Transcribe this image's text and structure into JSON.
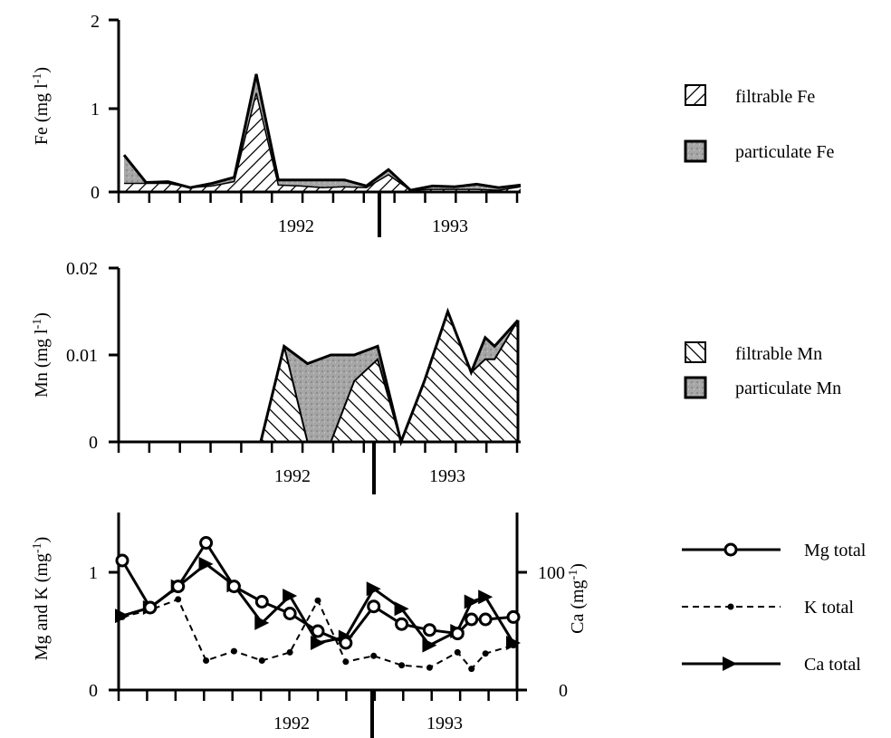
{
  "chart_data": [
    {
      "type": "area",
      "ylabel": "Fe (mg l-1)",
      "ylabel_parts": [
        "Fe (mg l",
        "-1",
        ")"
      ],
      "ylim": [
        0,
        2
      ],
      "yticks": [
        0,
        1,
        2
      ],
      "year_labels": [
        "1992",
        "1993"
      ],
      "x_index": [
        0,
        1,
        2,
        3,
        4,
        5,
        6,
        7,
        8,
        9,
        10,
        11,
        12,
        13,
        14,
        15,
        16,
        17,
        18
      ],
      "series": [
        {
          "name": "filtrable Fe",
          "values": [
            0.1,
            0.1,
            0.1,
            0.05,
            0.07,
            0.12,
            1.15,
            0.08,
            0.07,
            0.05,
            0.06,
            0.05,
            0.2,
            0.02,
            0.03,
            0.03,
            0.03,
            0.02,
            0.06
          ]
        },
        {
          "name": "particulate Fe",
          "values": [
            0.33,
            0.01,
            0.02,
            0.0,
            0.03,
            0.05,
            0.22,
            0.06,
            0.07,
            0.09,
            0.08,
            0.02,
            0.06,
            0.0,
            0.04,
            0.03,
            0.06,
            0.03,
            0.02
          ]
        }
      ],
      "colors": {
        "filtrable": "#ffffff",
        "particulate": "#9c9c9c"
      }
    },
    {
      "type": "area",
      "ylabel": "Mn (mg l-1)",
      "ylabel_parts": [
        "Mn (mg l",
        "-1",
        ")"
      ],
      "ylim": [
        0,
        0.02
      ],
      "yticks": [
        "0",
        "0.01",
        "0.02"
      ],
      "year_labels": [
        "1992",
        "1993"
      ],
      "series": [
        {
          "name": "filtrable Mn",
          "points": [
            [
              0,
              0
            ],
            [
              6,
              0
            ],
            [
              7,
              0.011
            ],
            [
              8,
              0
            ],
            [
              9,
              0
            ],
            [
              10,
              0.007
            ],
            [
              11,
              0.0095
            ],
            [
              12,
              0
            ],
            [
              13,
              0.007
            ],
            [
              14,
              0.015
            ],
            [
              15,
              0.008
            ],
            [
              15.6,
              0.0095
            ],
            [
              16,
              0.0095
            ],
            [
              17,
              0.014
            ]
          ]
        },
        {
          "name": "particulate Mn",
          "points": [
            [
              0,
              0
            ],
            [
              6,
              0
            ],
            [
              7,
              0.011
            ],
            [
              8,
              0.009
            ],
            [
              9,
              0.01
            ],
            [
              10,
              0.01
            ],
            [
              11,
              0.011
            ],
            [
              12,
              0
            ],
            [
              13,
              0.007
            ],
            [
              14,
              0.015
            ],
            [
              15,
              0.008
            ],
            [
              15.6,
              0.012
            ],
            [
              16,
              0.011
            ],
            [
              17,
              0.014
            ]
          ]
        }
      ],
      "colors": {
        "filtrable": "#ffffff",
        "particulate": "#9c9c9c"
      }
    },
    {
      "type": "line",
      "ylabel": "Mg and K (mg-1)",
      "ylabel_parts": [
        "Mg and K (mg",
        "-1",
        ")"
      ],
      "y2label": "Ca (mg-1)",
      "y2label_parts": [
        "Ca (mg",
        "-1",
        ")"
      ],
      "ylim": [
        0,
        1.5
      ],
      "yticks": [
        "0",
        "1"
      ],
      "y2lim": [
        0,
        150
      ],
      "y2ticks": [
        "0",
        "100"
      ],
      "year_labels": [
        "1992",
        "1993"
      ],
      "series": [
        {
          "name": "Mg total",
          "marker": "open-circle",
          "style": "solid",
          "points": [
            [
              0,
              1.1
            ],
            [
              1,
              0.7
            ],
            [
              2,
              0.88
            ],
            [
              3,
              1.25
            ],
            [
              4,
              0.88
            ],
            [
              5,
              0.75
            ],
            [
              6,
              0.65
            ],
            [
              7,
              0.5
            ],
            [
              8,
              0.4
            ],
            [
              9,
              0.71
            ],
            [
              10,
              0.56
            ],
            [
              11,
              0.51
            ],
            [
              12,
              0.48
            ],
            [
              12.5,
              0.6
            ],
            [
              13,
              0.6
            ],
            [
              14,
              0.62
            ]
          ]
        },
        {
          "name": "K total",
          "marker": "dot",
          "style": "dashed",
          "points": [
            [
              0,
              0.62
            ],
            [
              1,
              0.68
            ],
            [
              2,
              0.77
            ],
            [
              3,
              0.25
            ],
            [
              4,
              0.33
            ],
            [
              5,
              0.25
            ],
            [
              6,
              0.32
            ],
            [
              7,
              0.76
            ],
            [
              8,
              0.24
            ],
            [
              9,
              0.29
            ],
            [
              10,
              0.21
            ],
            [
              11,
              0.19
            ],
            [
              12,
              0.32
            ],
            [
              12.5,
              0.18
            ],
            [
              13,
              0.31
            ],
            [
              14,
              0.38
            ]
          ]
        },
        {
          "name": "Ca total",
          "marker": "filled-triangle",
          "style": "solid",
          "points": [
            [
              0,
              63
            ],
            [
              1,
              70
            ],
            [
              2,
              88
            ],
            [
              3,
              107
            ],
            [
              4,
              89
            ],
            [
              5,
              57
            ],
            [
              6,
              80
            ],
            [
              7,
              40
            ],
            [
              8,
              45
            ],
            [
              9,
              86
            ],
            [
              10,
              69
            ],
            [
              11,
              38
            ],
            [
              12,
              50
            ],
            [
              12.5,
              75
            ],
            [
              13,
              79
            ],
            [
              14,
              40
            ]
          ]
        }
      ],
      "colors": {
        "line": "#000000",
        "marker_fill": "#ffffff"
      }
    }
  ],
  "legends": {
    "fe": [
      {
        "label": "filtrable Fe",
        "swatch": "hatch-up"
      },
      {
        "label": "particulate Fe",
        "swatch": "grey"
      }
    ],
    "mn": [
      {
        "label": "filtrable Mn",
        "swatch": "hatch-down"
      },
      {
        "label": "particulate Mn",
        "swatch": "grey"
      }
    ],
    "ions": [
      {
        "label": "Mg total",
        "marker": "open-circle"
      },
      {
        "label": "K total",
        "marker": "dot"
      },
      {
        "label": "Ca total",
        "marker": "filled-triangle"
      }
    ]
  }
}
